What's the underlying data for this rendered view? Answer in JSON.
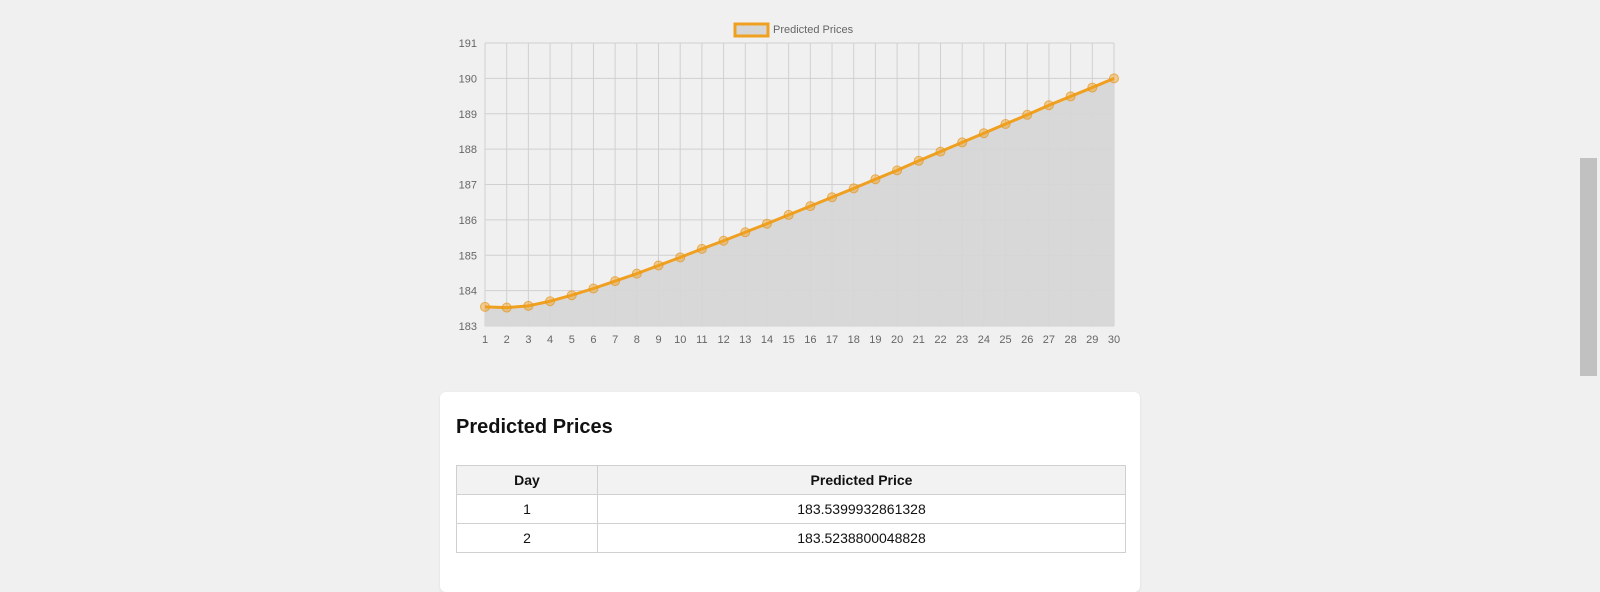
{
  "chart_data": {
    "type": "line",
    "legend": {
      "label": "Predicted Prices",
      "position": "top"
    },
    "x": [
      1,
      2,
      3,
      4,
      5,
      6,
      7,
      8,
      9,
      10,
      11,
      12,
      13,
      14,
      15,
      16,
      17,
      18,
      19,
      20,
      21,
      22,
      23,
      24,
      25,
      26,
      27,
      28,
      29,
      30
    ],
    "series": [
      {
        "name": "Predicted Prices",
        "values": [
          183.54,
          183.52,
          183.57,
          183.7,
          183.87,
          184.06,
          184.27,
          184.48,
          184.71,
          184.94,
          185.18,
          185.41,
          185.65,
          185.89,
          186.14,
          186.39,
          186.64,
          186.89,
          187.15,
          187.4,
          187.67,
          187.93,
          188.19,
          188.45,
          188.71,
          188.97,
          189.24,
          189.49,
          189.74,
          190.0
        ],
        "line_color": "#f0a020",
        "fill_color": "#d6d6d6"
      }
    ],
    "ylim": [
      183,
      191
    ],
    "y_ticks": [
      183,
      184,
      185,
      186,
      187,
      188,
      189,
      190,
      191
    ],
    "grid": true
  },
  "table": {
    "title": "Predicted Prices",
    "headers": [
      "Day",
      "Predicted Price"
    ],
    "rows": [
      {
        "day": "1",
        "price": "183.5399932861328"
      },
      {
        "day": "2",
        "price": "183.5238800048828"
      }
    ]
  }
}
